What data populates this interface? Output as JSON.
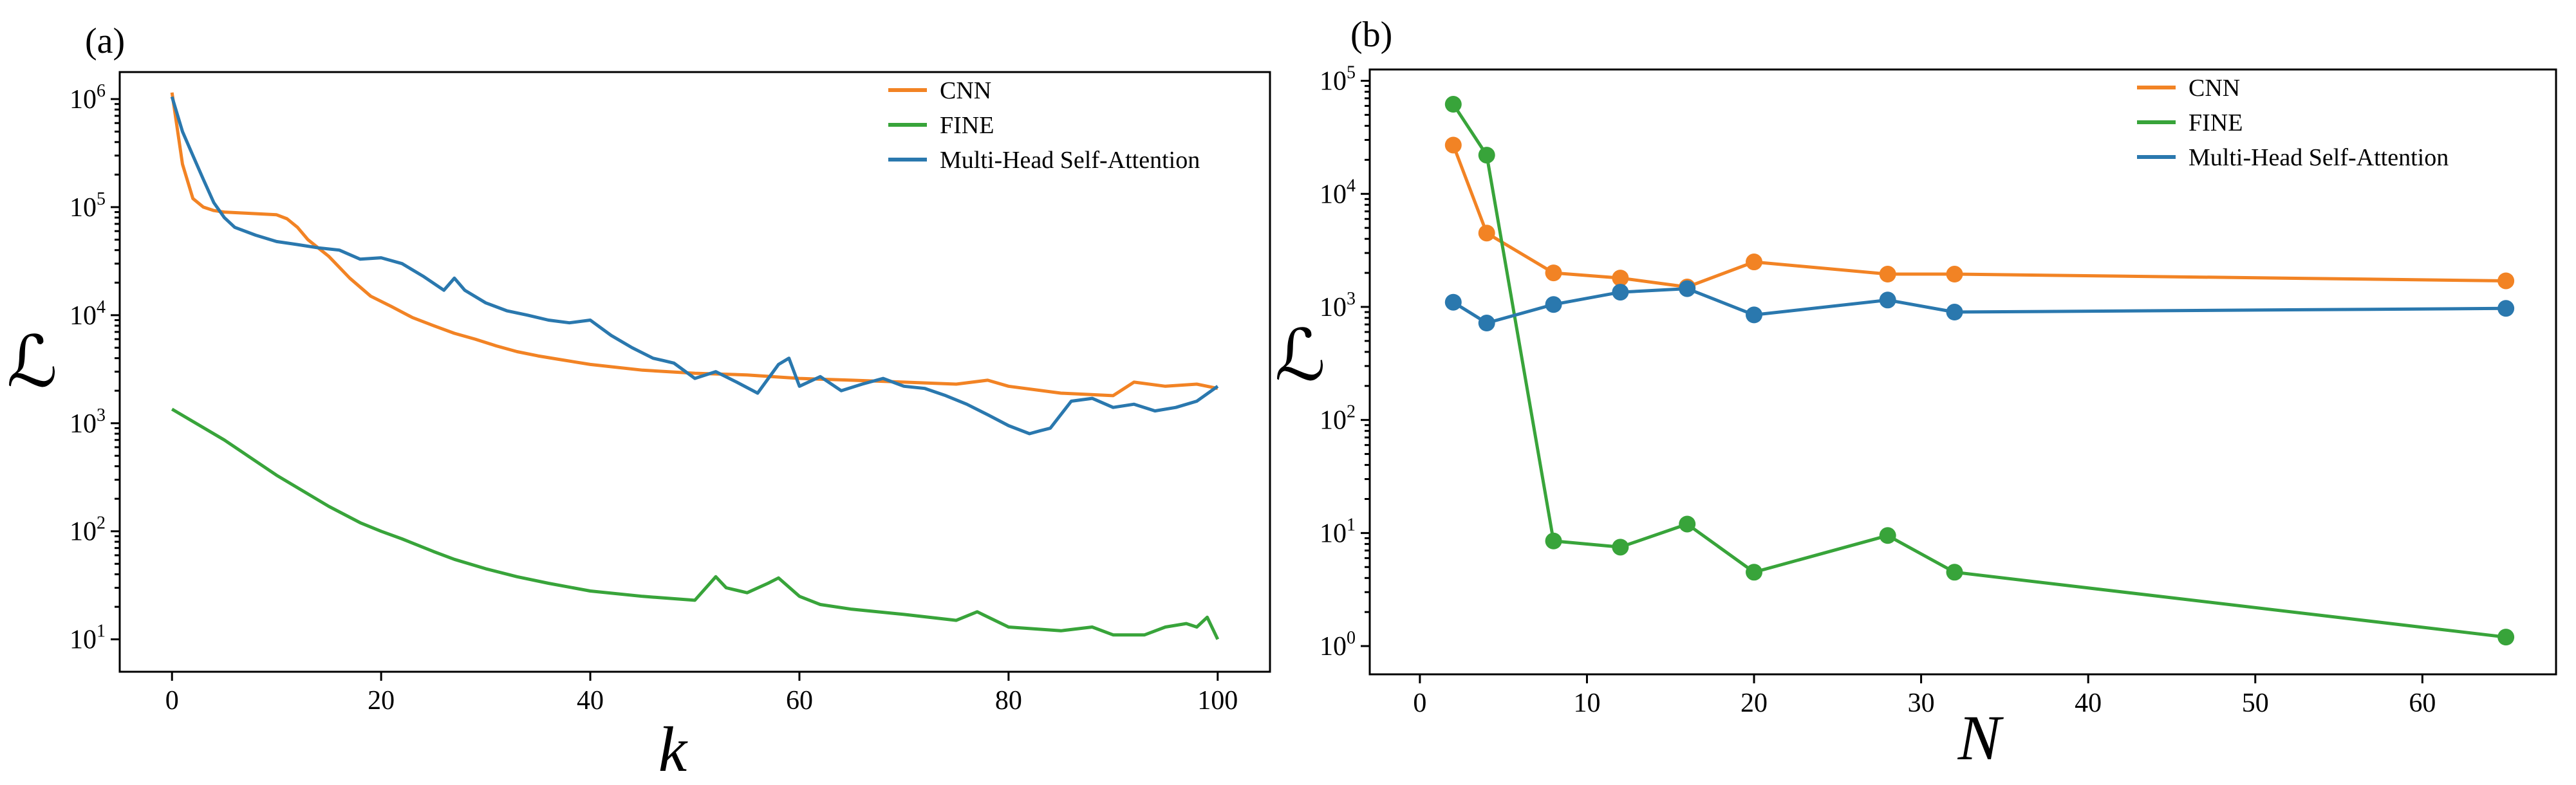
{
  "colors": {
    "CNN": "#F28324",
    "FINE": "#38A43A",
    "MHSA": "#2A78AE"
  },
  "chart_data": [
    {
      "type": "line",
      "panel_label": "(a)",
      "xlabel": "k",
      "ylabel": "ℒ",
      "xlim": [
        -5,
        105
      ],
      "ylim_log10": [
        0.7,
        6.25
      ],
      "yscale": "log",
      "xticks": [
        0,
        20,
        40,
        60,
        80,
        100
      ],
      "xtick_labels": [
        "0",
        "20",
        "40",
        "60",
        "80",
        "100"
      ],
      "yticks_exp": [
        1,
        2,
        3,
        4,
        5,
        6
      ],
      "ytick_base": "10",
      "legend_position": "top-right",
      "series": [
        {
          "name": "CNN",
          "color_key": "CNN",
          "x": [
            0,
            1,
            2,
            3,
            4,
            5,
            7,
            10,
            11,
            12,
            13,
            15,
            17,
            19,
            21,
            23,
            25,
            27,
            29,
            31,
            33,
            35,
            37,
            40,
            45,
            50,
            55,
            60,
            65,
            70,
            75,
            78,
            80,
            85,
            90,
            92,
            95,
            98,
            100
          ],
          "y": [
            1150000,
            250000,
            120000,
            100000,
            93000,
            90000,
            88000,
            85000,
            78000,
            65000,
            50000,
            35000,
            22000,
            15000,
            12000,
            9500,
            8000,
            6800,
            6000,
            5200,
            4600,
            4200,
            3900,
            3500,
            3100,
            2900,
            2800,
            2600,
            2500,
            2400,
            2300,
            2500,
            2200,
            1900,
            1800,
            2400,
            2200,
            2300,
            2100
          ]
        },
        {
          "name": "FINE",
          "color_key": "FINE",
          "x": [
            0,
            5,
            10,
            15,
            18,
            20,
            22,
            25,
            27,
            30,
            33,
            36,
            40,
            45,
            50,
            52,
            53,
            55,
            57,
            58,
            60,
            62,
            65,
            70,
            75,
            77,
            80,
            85,
            88,
            90,
            93,
            95,
            97,
            98,
            99,
            100
          ],
          "y": [
            1350,
            700,
            330,
            170,
            120,
            100,
            85,
            65,
            55,
            45,
            38,
            33,
            28,
            25,
            23,
            38,
            30,
            27,
            33,
            37,
            25,
            21,
            19,
            17,
            15,
            18,
            13,
            12,
            13,
            11,
            11,
            13,
            14,
            13,
            16,
            10
          ]
        },
        {
          "name": "Multi-Head Self-Attention",
          "color_key": "MHSA",
          "x": [
            0,
            1,
            2,
            3,
            4,
            5,
            6,
            8,
            10,
            12,
            14,
            16,
            18,
            20,
            22,
            24,
            26,
            27,
            28,
            30,
            32,
            34,
            36,
            38,
            40,
            42,
            44,
            46,
            47,
            48,
            50,
            52,
            54,
            56,
            58,
            59,
            60,
            62,
            64,
            66,
            68,
            70,
            72,
            74,
            76,
            78,
            80,
            82,
            83,
            84,
            86,
            88,
            90,
            92,
            94,
            96,
            98,
            100
          ],
          "y": [
            1050000,
            500000,
            300000,
            180000,
            110000,
            80000,
            65000,
            55000,
            48000,
            45000,
            42000,
            40000,
            33000,
            34000,
            30000,
            23000,
            17000,
            22000,
            17000,
            13000,
            11000,
            10000,
            9000,
            8500,
            9000,
            6500,
            5000,
            4000,
            3800,
            3600,
            2600,
            3000,
            2400,
            1900,
            3500,
            4000,
            2200,
            2700,
            2000,
            2300,
            2600,
            2200,
            2100,
            1800,
            1500,
            1200,
            950,
            800,
            850,
            900,
            1600,
            1700,
            1400,
            1500,
            1300,
            1400,
            1600,
            2200
          ]
        }
      ]
    },
    {
      "type": "line",
      "panel_label": "(b)",
      "xlabel": "N",
      "ylabel": "ℒ",
      "xlim": [
        -3,
        68
      ],
      "ylim_log10": [
        -0.25,
        5.1
      ],
      "yscale": "log",
      "xticks": [
        0,
        10,
        20,
        30,
        40,
        50,
        60
      ],
      "xtick_labels": [
        "0",
        "10",
        "20",
        "30",
        "40",
        "50",
        "60"
      ],
      "yticks_exp": [
        0,
        1,
        2,
        3,
        4,
        5
      ],
      "ytick_base": "10",
      "legend_position": "top-right",
      "markers": true,
      "series": [
        {
          "name": "CNN",
          "color_key": "CNN",
          "x": [
            2,
            4,
            8,
            12,
            16,
            20,
            28,
            32,
            65
          ],
          "y": [
            27000,
            4500,
            2000,
            1800,
            1500,
            2500,
            1950,
            1950,
            1700
          ]
        },
        {
          "name": "FINE",
          "color_key": "FINE",
          "x": [
            2,
            4,
            8,
            12,
            16,
            20,
            28,
            32,
            65
          ],
          "y": [
            62000,
            22000,
            8.5,
            7.5,
            12,
            4.5,
            9.5,
            4.5,
            1.2
          ]
        },
        {
          "name": "Multi-Head Self-Attention",
          "color_key": "MHSA",
          "x": [
            2,
            4,
            8,
            12,
            16,
            20,
            28,
            32,
            65
          ],
          "y": [
            1100,
            720,
            1050,
            1350,
            1450,
            850,
            1150,
            900,
            970
          ]
        }
      ]
    }
  ]
}
